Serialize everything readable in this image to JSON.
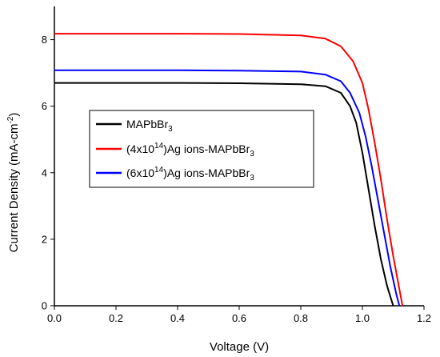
{
  "chart_data": {
    "type": "line",
    "title": "",
    "xlabel": "Voltage (V)",
    "ylabel": {
      "prefix": "Current Density (mA-cm",
      "superscript": "-2",
      "suffix": ")"
    },
    "xlim": [
      0.0,
      1.2
    ],
    "ylim": [
      0,
      9.0
    ],
    "x_ticks": [
      "0.0",
      "0.2",
      "0.4",
      "0.6",
      "0.8",
      "1.0",
      "1.2"
    ],
    "y_ticks": [
      "0",
      "2",
      "4",
      "6",
      "8"
    ],
    "grid": false,
    "legend_position": "center-left",
    "series": [
      {
        "name": "MAPbBr3",
        "label_parts": [
          {
            "text": "MAPbBr",
            "style": "normal"
          },
          {
            "text": "3",
            "style": "sub"
          }
        ],
        "color": "#000000",
        "x": [
          0.0,
          0.2,
          0.4,
          0.6,
          0.8,
          0.88,
          0.93,
          0.96,
          0.98,
          1.0,
          1.02,
          1.04,
          1.06,
          1.08,
          1.1
        ],
        "y": [
          6.7,
          6.7,
          6.7,
          6.69,
          6.66,
          6.6,
          6.4,
          6.0,
          5.5,
          4.6,
          3.5,
          2.4,
          1.4,
          0.6,
          0.0
        ]
      },
      {
        "name": "(4x10^14)Ag ions-MAPbBr3",
        "label_parts": [
          {
            "text": "(4x10",
            "style": "normal"
          },
          {
            "text": "14",
            "style": "sup"
          },
          {
            "text": ")Ag ions-MAPbBr",
            "style": "normal"
          },
          {
            "text": "3",
            "style": "sub"
          }
        ],
        "color": "#ff0000",
        "x": [
          0.0,
          0.2,
          0.4,
          0.6,
          0.8,
          0.88,
          0.93,
          0.97,
          1.0,
          1.02,
          1.04,
          1.06,
          1.08,
          1.1,
          1.12,
          1.13
        ],
        "y": [
          8.18,
          8.18,
          8.18,
          8.17,
          8.13,
          8.03,
          7.8,
          7.35,
          6.7,
          5.9,
          4.9,
          3.8,
          2.6,
          1.5,
          0.5,
          0.0
        ]
      },
      {
        "name": "(6x10^14)Ag ions-MAPbBr3",
        "label_parts": [
          {
            "text": "(6x10",
            "style": "normal"
          },
          {
            "text": "14",
            "style": "sup"
          },
          {
            "text": ")Ag ions-MAPbBr",
            "style": "normal"
          },
          {
            "text": "3",
            "style": "sub"
          }
        ],
        "color": "#0000ff",
        "x": [
          0.0,
          0.2,
          0.4,
          0.6,
          0.8,
          0.88,
          0.93,
          0.96,
          0.99,
          1.01,
          1.03,
          1.05,
          1.07,
          1.09,
          1.11,
          1.12
        ],
        "y": [
          7.08,
          7.08,
          7.08,
          7.07,
          7.04,
          6.95,
          6.75,
          6.4,
          5.8,
          5.1,
          4.2,
          3.2,
          2.2,
          1.2,
          0.35,
          0.0
        ]
      }
    ]
  }
}
